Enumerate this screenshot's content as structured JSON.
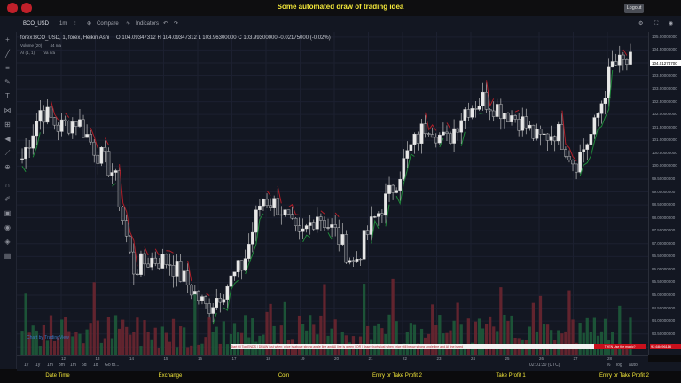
{
  "header": {
    "title": "Some automated draw of trading idea",
    "logout_label": "Logout"
  },
  "toolbar": {
    "symbol": "BCO_USD",
    "interval": "1m",
    "compare_label": "Compare",
    "indicators_label": "Indicators"
  },
  "legend": {
    "main": "forex:BCO_USD, 1, forex, Heikin Ashi",
    "open": "O 104.09347312",
    "high": "H 104.09347312",
    "low": "L 103.96300000",
    "close": "C 103.99300000",
    "change": "-0.02175000 (-0.02%)",
    "volume_label": "Volume (20)",
    "volume_vals": "44  n/a",
    "ai_label": "AI (1, 1)",
    "ai_vals": "n/a  n/a"
  },
  "price_axis": {
    "labels": [
      "105.00000000",
      "104.50000000",
      "104.00000000",
      "103.50000000",
      "103.00000000",
      "102.50000000",
      "102.00000000",
      "101.50000000",
      "101.00000000",
      "100.50000000",
      "100.00000000",
      "99.50000000",
      "99.00000000",
      "98.50000000",
      "98.00000000",
      "97.50000000",
      "97.00000000",
      "96.50000000",
      "96.00000000",
      "95.50000000",
      "95.00000000",
      "94.50000000",
      "94.00000000",
      "93.50000000",
      "93.00000000"
    ],
    "current": "104.01274700",
    "last_value": "92.68496116"
  },
  "time_axis": {
    "labels": [
      "12",
      "13",
      "14",
      "15",
      "16",
      "17",
      "18",
      "19",
      "20",
      "21",
      "22",
      "23",
      "24",
      "25",
      "26",
      "27",
      "28"
    ],
    "utc": "02:01:30 (UTC)",
    "pct": "%",
    "log": "log",
    "auto": "auto"
  },
  "range_bar": {
    "items": [
      "1y",
      "1y",
      "1m",
      "3m",
      "1m",
      "5d",
      "1d",
      "Go to..."
    ]
  },
  "ticker": {
    "text": "Start till Top ENDS  |  DRAW just when: price is above strong angle line and AI line is green  |  OR  |  draw shorts just when price still below strong angle line and AI line is red",
    "badge": "THEN Use the magic?"
  },
  "logo_text": "Chart by TradingView",
  "bottom": {
    "items": [
      "Date Time",
      "Exchange",
      "Coin",
      "Entry or Take Profit 2",
      "Take Profit 1",
      "Entry or Take Profit 2"
    ]
  },
  "colors": {
    "up": "#e8e8e8",
    "down": "#2a2e39",
    "ai_green": "#1f8a3a",
    "ai_red": "#b01e28",
    "accent": "#f4e83a"
  },
  "chart_data": {
    "type": "line",
    "x_labels": [
      "12",
      "13",
      "14",
      "15",
      "16",
      "17",
      "18",
      "19",
      "20",
      "21",
      "22",
      "23",
      "24",
      "25",
      "26",
      "27",
      "28"
    ],
    "series": [
      {
        "values": [
          100.3,
          102.2,
          101.5,
          101.8,
          100.6,
          99.7,
          96.0,
          96.4,
          96.3,
          95.4,
          94.5,
          95.3,
          96.2,
          98.8,
          98.4,
          97.1,
          98.2,
          97.4,
          96.2,
          97.8,
          99.0,
          100.6,
          101.7,
          100.9,
          102.2,
          102.6,
          102.2,
          101.8,
          101.0,
          101.4,
          100.1,
          101.4,
          103.9,
          104.0
        ]
      }
    ],
    "ylim": [
      92.7,
      105.2
    ]
  }
}
